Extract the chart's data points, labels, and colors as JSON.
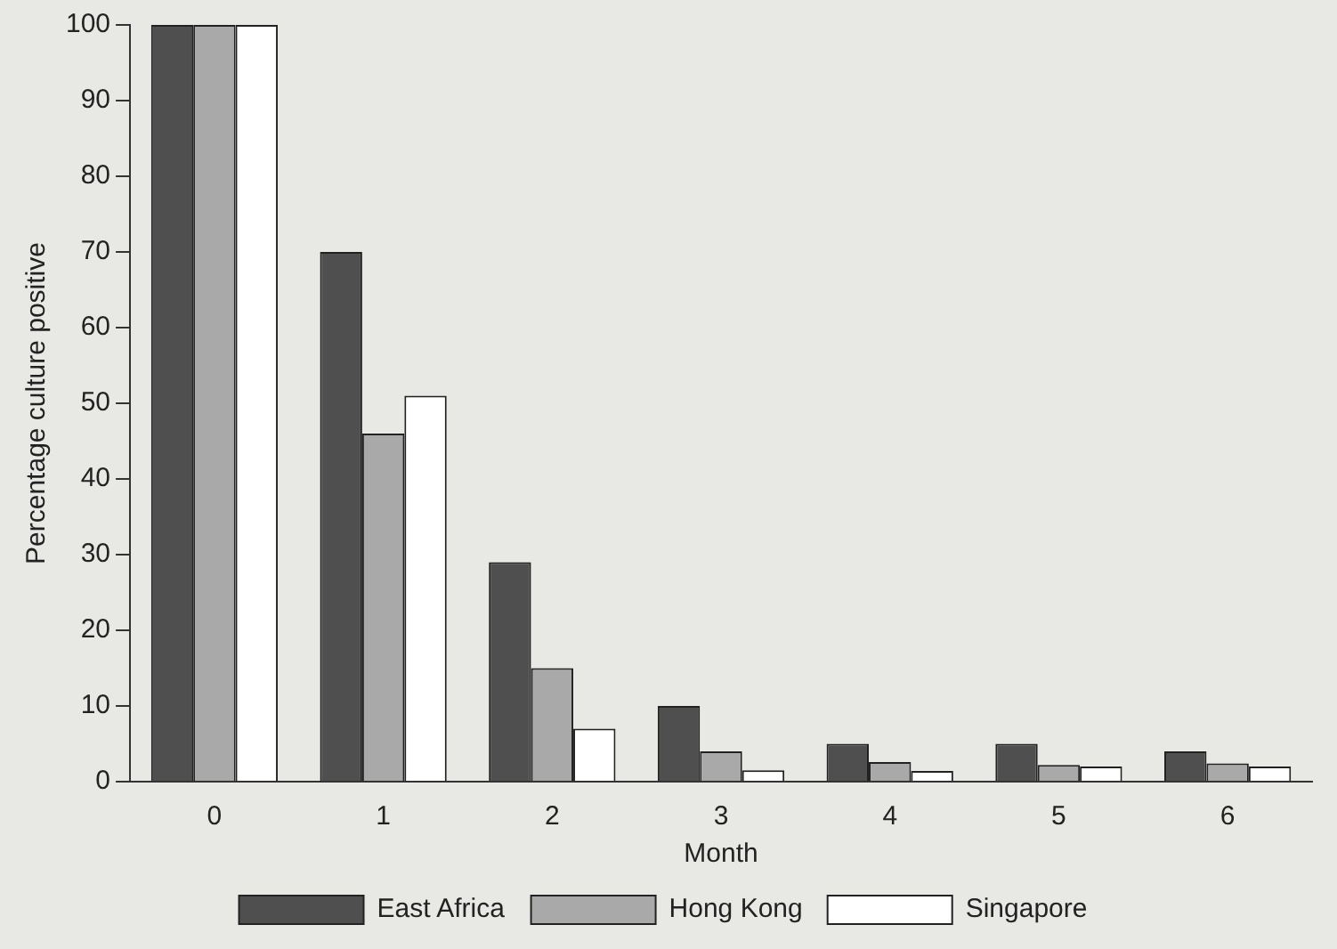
{
  "chart_data": {
    "type": "bar",
    "xlabel": "Month",
    "ylabel": "Percentage culture positive",
    "categories": [
      "0",
      "1",
      "2",
      "3",
      "4",
      "5",
      "6"
    ],
    "series": [
      {
        "name": "East Africa",
        "color": "#4f4f4f",
        "values": [
          100,
          70,
          29,
          10,
          5,
          5,
          4
        ]
      },
      {
        "name": "Hong Kong",
        "color": "#a9a9a9",
        "values": [
          100,
          46,
          15,
          4,
          2.6,
          2.2,
          2.4
        ]
      },
      {
        "name": "Singapore",
        "color": "#ffffff",
        "values": [
          100,
          51,
          7,
          1.5,
          1.4,
          2,
          2
        ]
      }
    ],
    "ylim": [
      0,
      100
    ],
    "yticks": [
      0,
      10,
      20,
      30,
      40,
      50,
      60,
      70,
      80,
      90,
      100
    ],
    "grid": false,
    "legend": "bottom"
  }
}
